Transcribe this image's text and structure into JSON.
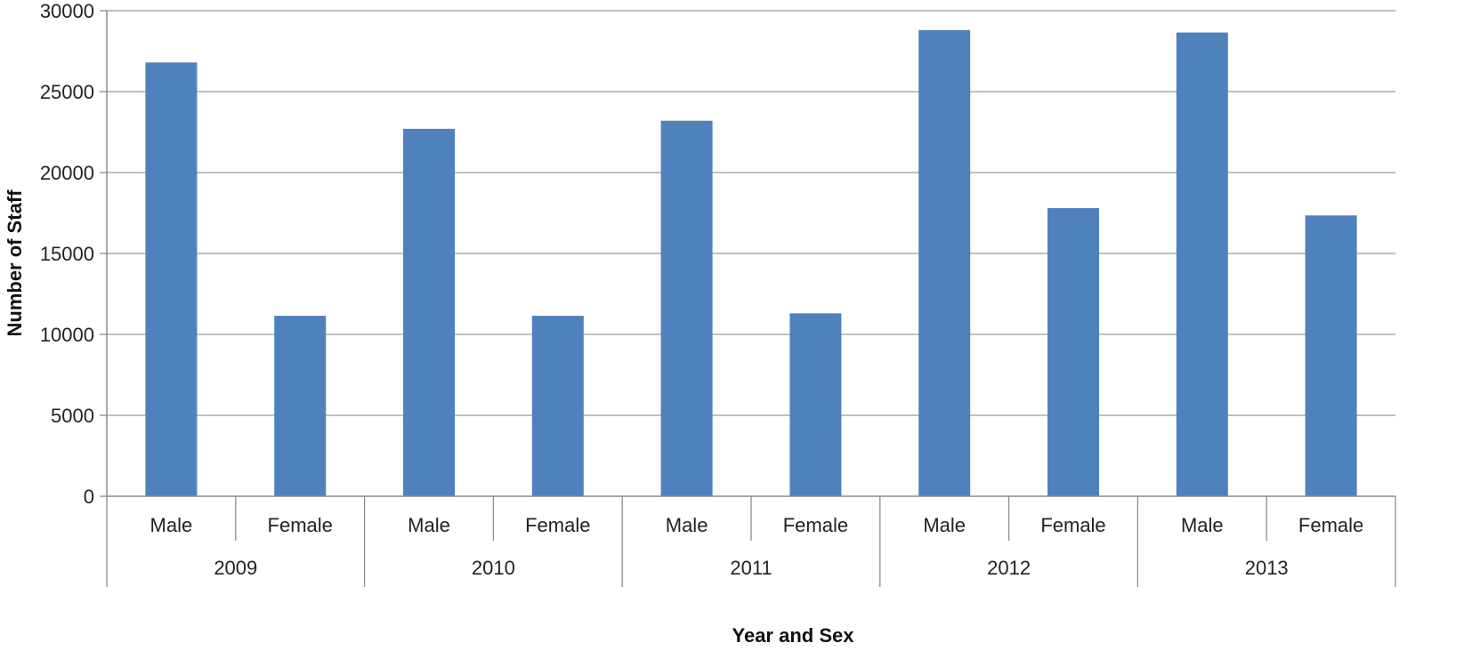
{
  "chart_data": {
    "type": "bar",
    "title": "",
    "xlabel": "Year and Sex",
    "ylabel": "Number of Staff",
    "ylim": [
      0,
      30000
    ],
    "yticks": [
      0,
      5000,
      10000,
      15000,
      20000,
      25000,
      30000
    ],
    "grid": true,
    "legend": "none",
    "bar_color": "#4F81BD",
    "groups": [
      "2009",
      "2010",
      "2011",
      "2012",
      "2013"
    ],
    "categories": [
      "Male",
      "Female",
      "Male",
      "Female",
      "Male",
      "Female",
      "Male",
      "Female",
      "Male",
      "Female"
    ],
    "group_index": [
      0,
      0,
      1,
      1,
      2,
      2,
      3,
      3,
      4,
      4
    ],
    "values": [
      26800,
      11150,
      22700,
      11150,
      23200,
      11300,
      28800,
      17800,
      28650,
      17350
    ]
  }
}
